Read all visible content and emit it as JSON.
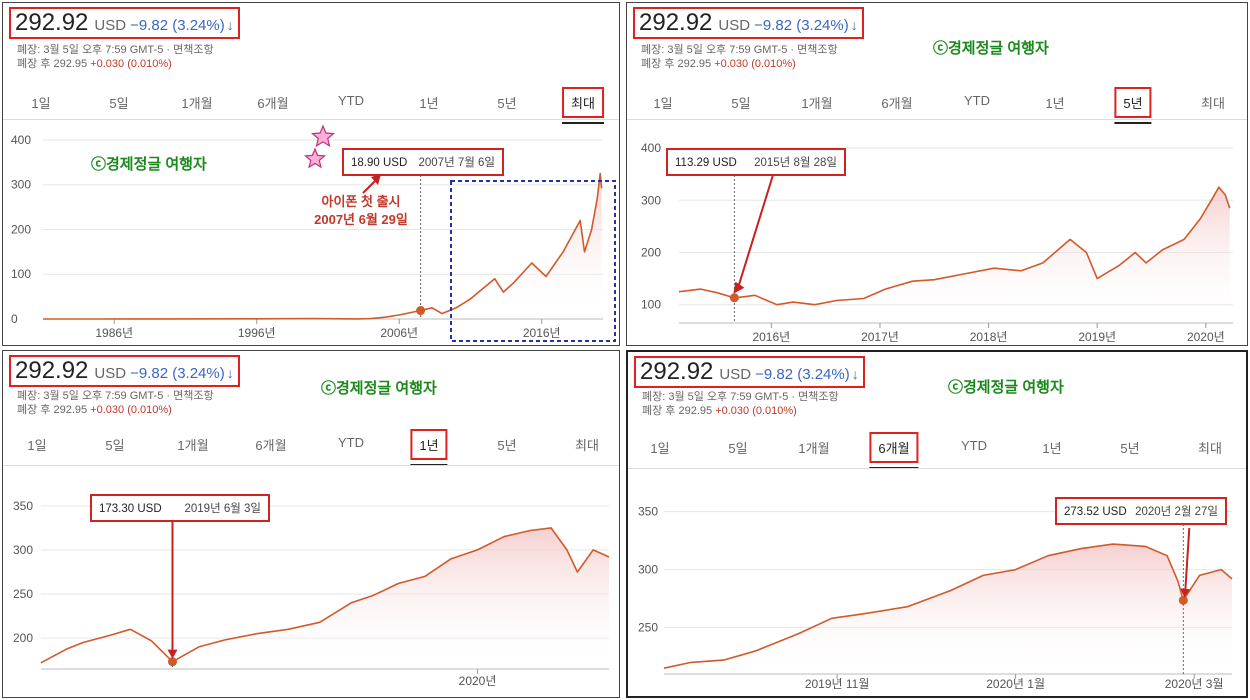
{
  "header": {
    "price": "292.92",
    "currency": "USD",
    "change": "−9.82 (3.24%)",
    "change_arrow": "↓",
    "closed_line": "폐장: 3월 5일 오후 7:59 GMT-5 · 면책조항",
    "after_hours_label": "폐장 후 292.95",
    "after_hours_change": "+0.030 (0.010%)"
  },
  "watermark": "ⓒ경제정글 여행자",
  "tabs": [
    "1일",
    "5일",
    "1개월",
    "6개월",
    "YTD",
    "1년",
    "5년",
    "최대"
  ],
  "colors": {
    "line": "#d05a2a",
    "fill": "#f4c7c7",
    "highlight_box": "#d22222",
    "change": "#3a67c4",
    "watermark": "#1a8a1a",
    "dot": "#d05a2a"
  },
  "chart_data": [
    {
      "panel": "max",
      "type": "area",
      "selected_tab": "최대",
      "yticks": [
        0,
        100,
        200,
        300,
        400
      ],
      "ylim": [
        0,
        420
      ],
      "xlim": [
        1981,
        2020.3
      ],
      "xticks": [
        {
          "v": 1986,
          "label": "1986년"
        },
        {
          "v": 1996,
          "label": "1996년"
        },
        {
          "v": 2006,
          "label": "2006년"
        },
        {
          "v": 2016,
          "label": "2016년"
        }
      ],
      "points": [
        [
          1981,
          0.1
        ],
        [
          1985,
          0.1
        ],
        [
          1990,
          0.3
        ],
        [
          1995,
          0.4
        ],
        [
          2000,
          1
        ],
        [
          2003,
          0.3
        ],
        [
          2004,
          1
        ],
        [
          2005,
          4
        ],
        [
          2006,
          9
        ],
        [
          2007.5,
          19
        ],
        [
          2008.3,
          25
        ],
        [
          2009,
          12
        ],
        [
          2010,
          25
        ],
        [
          2011,
          45
        ],
        [
          2012.7,
          90
        ],
        [
          2013.3,
          60
        ],
        [
          2014,
          80
        ],
        [
          2015.3,
          125
        ],
        [
          2016.3,
          95
        ],
        [
          2017.5,
          150
        ],
        [
          2018.7,
          220
        ],
        [
          2019,
          150
        ],
        [
          2019.5,
          200
        ],
        [
          2019.9,
          270
        ],
        [
          2020.1,
          325
        ],
        [
          2020.2,
          292
        ]
      ],
      "tooltip": {
        "value": "18.90 USD",
        "date": "2007년 7월 6일",
        "x": 2007.5,
        "y": 18.9
      },
      "annotation_lines": [
        "아이폰 첫 출시",
        "2007년 6월 29일"
      ]
    },
    {
      "panel": "5y",
      "type": "area",
      "selected_tab": "5년",
      "yticks": [
        100,
        200,
        300,
        400
      ],
      "ylim": [
        65,
        425
      ],
      "xlim": [
        2015.15,
        2020.25
      ],
      "xticks": [
        {
          "v": 2016,
          "label": "2016년"
        },
        {
          "v": 2017,
          "label": "2017년"
        },
        {
          "v": 2018,
          "label": "2018년"
        },
        {
          "v": 2019,
          "label": "2019년"
        },
        {
          "v": 2020,
          "label": "2020년"
        }
      ],
      "points": [
        [
          2015.15,
          125
        ],
        [
          2015.35,
          130
        ],
        [
          2015.5,
          123
        ],
        [
          2015.66,
          113
        ],
        [
          2015.85,
          118
        ],
        [
          2016.05,
          100
        ],
        [
          2016.2,
          105
        ],
        [
          2016.4,
          100
        ],
        [
          2016.6,
          108
        ],
        [
          2016.85,
          112
        ],
        [
          2017.05,
          130
        ],
        [
          2017.3,
          145
        ],
        [
          2017.5,
          148
        ],
        [
          2017.8,
          160
        ],
        [
          2018.05,
          170
        ],
        [
          2018.3,
          165
        ],
        [
          2018.5,
          180
        ],
        [
          2018.75,
          225
        ],
        [
          2018.9,
          200
        ],
        [
          2019.0,
          150
        ],
        [
          2019.2,
          175
        ],
        [
          2019.35,
          200
        ],
        [
          2019.45,
          180
        ],
        [
          2019.6,
          205
        ],
        [
          2019.8,
          225
        ],
        [
          2019.95,
          265
        ],
        [
          2020.05,
          300
        ],
        [
          2020.12,
          325
        ],
        [
          2020.18,
          310
        ],
        [
          2020.22,
          285
        ]
      ],
      "tooltip": {
        "value": "113.29 USD",
        "date": "2015년 8월 28일",
        "x": 2015.66,
        "y": 113.29
      }
    },
    {
      "panel": "1y",
      "type": "area",
      "selected_tab": "1년",
      "yticks": [
        200,
        250,
        300,
        350
      ],
      "ylim": [
        165,
        360
      ],
      "xlim": [
        2019.17,
        2020.25
      ],
      "xticks": [
        {
          "v": 2020,
          "label": "2020년"
        }
      ],
      "points": [
        [
          2019.17,
          172
        ],
        [
          2019.22,
          188
        ],
        [
          2019.25,
          195
        ],
        [
          2019.3,
          203
        ],
        [
          2019.34,
          210
        ],
        [
          2019.38,
          197
        ],
        [
          2019.42,
          173.3
        ],
        [
          2019.47,
          190
        ],
        [
          2019.52,
          198
        ],
        [
          2019.58,
          205
        ],
        [
          2019.64,
          210
        ],
        [
          2019.7,
          218
        ],
        [
          2019.76,
          240
        ],
        [
          2019.8,
          248
        ],
        [
          2019.85,
          262
        ],
        [
          2019.9,
          270
        ],
        [
          2019.95,
          290
        ],
        [
          2020.0,
          300
        ],
        [
          2020.05,
          315
        ],
        [
          2020.1,
          322
        ],
        [
          2020.14,
          325
        ],
        [
          2020.17,
          300
        ],
        [
          2020.19,
          275
        ],
        [
          2020.22,
          300
        ],
        [
          2020.25,
          292
        ]
      ],
      "tooltip": {
        "value": "173.30 USD",
        "date": "2019년 6월 3일",
        "x": 2019.42,
        "y": 173.3
      }
    },
    {
      "panel": "6m",
      "type": "area",
      "selected_tab": "6개월",
      "yticks": [
        250,
        300,
        350
      ],
      "ylim": [
        210,
        360
      ],
      "xlim": [
        2019.675,
        2020.2
      ],
      "xticks": [
        {
          "v": 2019.835,
          "label": "2019년 11월"
        },
        {
          "v": 2020.0,
          "label": "2020년 1월"
        },
        {
          "v": 2020.165,
          "label": "2020년 3월"
        }
      ],
      "points": [
        [
          2019.675,
          215
        ],
        [
          2019.7,
          220
        ],
        [
          2019.73,
          222
        ],
        [
          2019.76,
          230
        ],
        [
          2019.8,
          245
        ],
        [
          2019.83,
          258
        ],
        [
          2019.86,
          262
        ],
        [
          2019.9,
          268
        ],
        [
          2019.94,
          282
        ],
        [
          2019.97,
          295
        ],
        [
          2020.0,
          300
        ],
        [
          2020.03,
          312
        ],
        [
          2020.06,
          318
        ],
        [
          2020.09,
          322
        ],
        [
          2020.12,
          320
        ],
        [
          2020.14,
          312
        ],
        [
          2020.15,
          290
        ],
        [
          2020.155,
          273.52
        ],
        [
          2020.17,
          295
        ],
        [
          2020.19,
          300
        ],
        [
          2020.2,
          292
        ]
      ],
      "tooltip": {
        "value": "273.52 USD",
        "date": "2020년 2월 27일",
        "x": 2020.155,
        "y": 273.52
      }
    }
  ]
}
